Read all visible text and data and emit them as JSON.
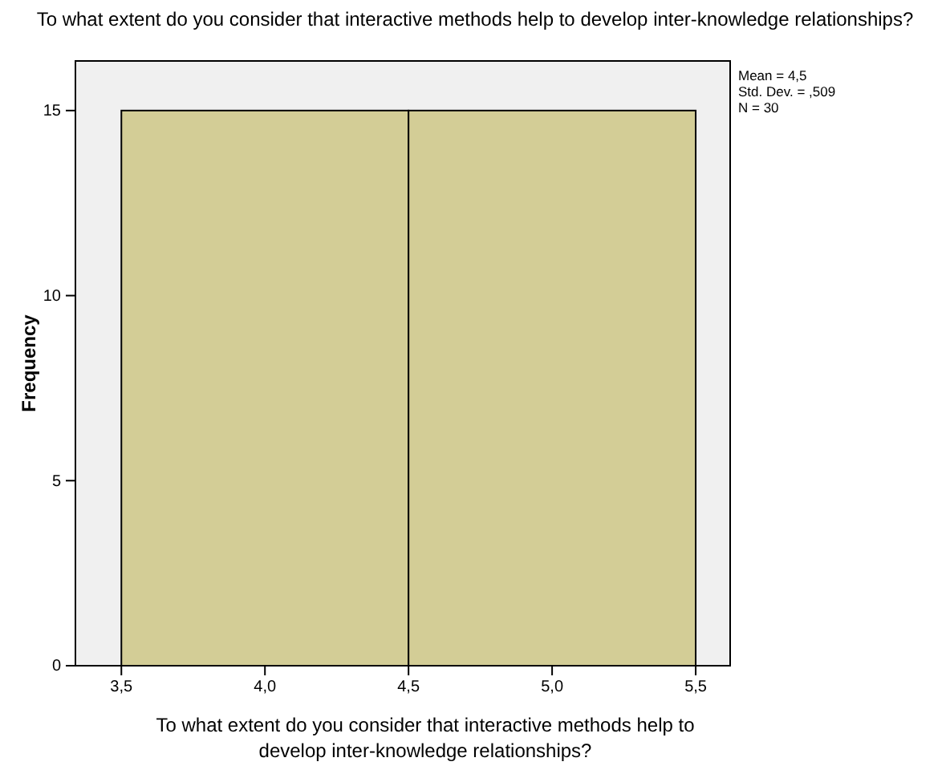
{
  "chart_data": {
    "type": "histogram",
    "title": "To what extent do you consider that interactive methods help to develop inter-knowledge relationships?",
    "xlabel": "To what extent do you consider that interactive methods help to develop inter-knowledge relationships?",
    "ylabel": "Frequency",
    "bins": [
      3.5,
      4.5,
      5.5
    ],
    "values": [
      15,
      15
    ],
    "color": "#d3cd96",
    "xlim": [
      3.34,
      5.62
    ],
    "xticks": [
      {
        "value": 3.5,
        "label": "3,5"
      },
      {
        "value": 4.0,
        "label": "4,0"
      },
      {
        "value": 4.5,
        "label": "4,5"
      },
      {
        "value": 5.0,
        "label": "5,0"
      },
      {
        "value": 5.5,
        "label": "5,5"
      }
    ],
    "ylim": [
      0,
      16.34
    ],
    "yticks": [
      0,
      5,
      10,
      15
    ],
    "grid": false,
    "annotations": [
      "Mean = 4,5",
      "Std. Dev. = ,509",
      "N = 30"
    ]
  }
}
